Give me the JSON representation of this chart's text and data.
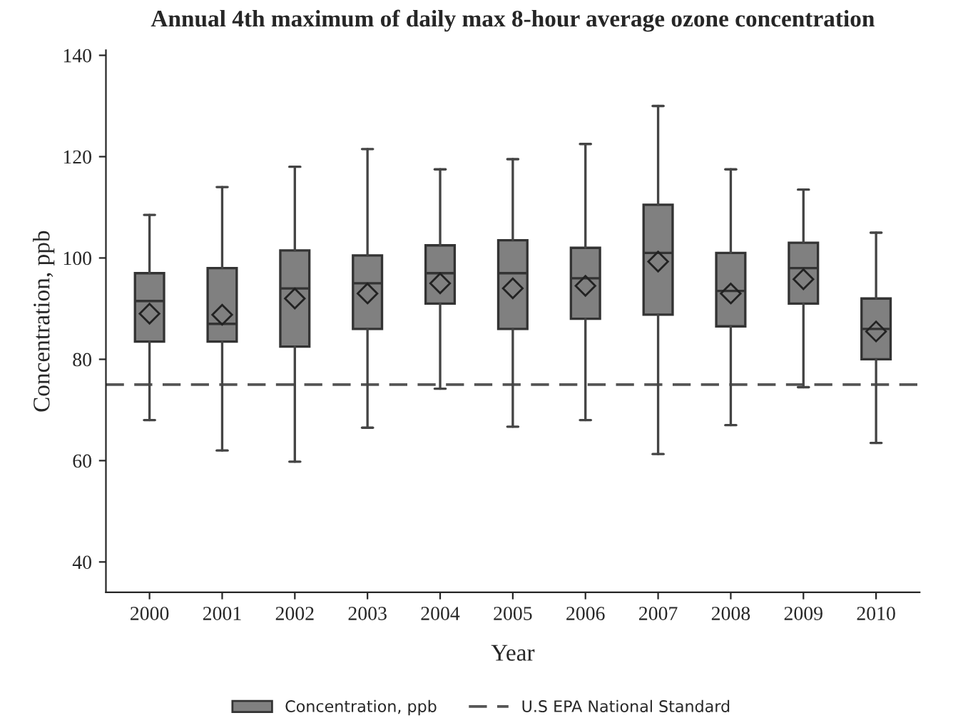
{
  "chart_data": {
    "type": "box",
    "title": "Annual 4th maximum of daily max 8-hour average ozone concentration",
    "xlabel": "Year",
    "ylabel": "Concentration, ppb",
    "categories": [
      "2000",
      "2001",
      "2002",
      "2003",
      "2004",
      "2005",
      "2006",
      "2007",
      "2008",
      "2009",
      "2010"
    ],
    "series": [
      {
        "name": "Concentration, ppb",
        "color": "#808080",
        "boxes": [
          {
            "low": 68,
            "q1": 83.5,
            "median": 91.5,
            "q3": 97,
            "high": 108.5,
            "mean": 89
          },
          {
            "low": 62,
            "q1": 83.5,
            "median": 87,
            "q3": 98,
            "high": 114,
            "mean": 88.8
          },
          {
            "low": 59.8,
            "q1": 82.5,
            "median": 94,
            "q3": 101.5,
            "high": 118,
            "mean": 92
          },
          {
            "low": 66.5,
            "q1": 86,
            "median": 95,
            "q3": 100.5,
            "high": 121.5,
            "mean": 93
          },
          {
            "low": 74.2,
            "q1": 91,
            "median": 97,
            "q3": 102.5,
            "high": 117.5,
            "mean": 95
          },
          {
            "low": 66.7,
            "q1": 86,
            "median": 97,
            "q3": 103.5,
            "high": 119.5,
            "mean": 94
          },
          {
            "low": 68,
            "q1": 88,
            "median": 96,
            "q3": 102,
            "high": 122.5,
            "mean": 94.5
          },
          {
            "low": 61.3,
            "q1": 88.8,
            "median": 101,
            "q3": 110.5,
            "high": 130,
            "mean": 99.3
          },
          {
            "low": 67,
            "q1": 86.5,
            "median": 93.5,
            "q3": 101,
            "high": 117.5,
            "mean": 93
          },
          {
            "low": 74.5,
            "q1": 91,
            "median": 98,
            "q3": 103,
            "high": 113.5,
            "mean": 95.8
          },
          {
            "low": 63.5,
            "q1": 80,
            "median": 86,
            "q3": 92,
            "high": 105,
            "mean": 85.5
          }
        ]
      }
    ],
    "ref_lines": [
      {
        "axis": "y",
        "value": 75,
        "label": "U.S EPA National Standard",
        "color": "#555555",
        "line_style": "dashed"
      }
    ],
    "ylim": [
      34,
      141
    ],
    "yticks": [
      40,
      60,
      80,
      100,
      120,
      140
    ],
    "grid": false,
    "legend": "bottom"
  }
}
